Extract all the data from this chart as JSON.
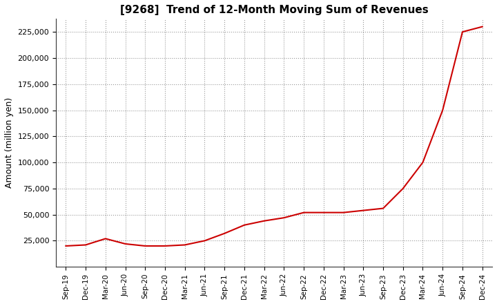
{
  "title": "[9268]  Trend of 12-Month Moving Sum of Revenues",
  "ylabel": "Amount (million yen)",
  "line_color": "#cc0000",
  "background_color": "#ffffff",
  "plot_bg_color": "#ffffff",
  "grid_color": "#999999",
  "ylim": [
    0,
    237500
  ],
  "yticks": [
    25000,
    50000,
    75000,
    100000,
    125000,
    150000,
    175000,
    200000,
    225000
  ],
  "x_labels": [
    "Sep-19",
    "Dec-19",
    "Mar-20",
    "Jun-20",
    "Sep-20",
    "Dec-20",
    "Mar-21",
    "Jun-21",
    "Sep-21",
    "Dec-21",
    "Mar-22",
    "Jun-22",
    "Sep-22",
    "Dec-22",
    "Mar-23",
    "Jun-23",
    "Sep-23",
    "Dec-23",
    "Mar-24",
    "Jun-24",
    "Sep-24",
    "Dec-24"
  ],
  "values": [
    20000,
    21000,
    27000,
    22000,
    20000,
    20000,
    21000,
    25000,
    32000,
    40000,
    44000,
    47000,
    52000,
    52000,
    52000,
    54000,
    56000,
    75000,
    100000,
    150000,
    225000,
    230000
  ]
}
